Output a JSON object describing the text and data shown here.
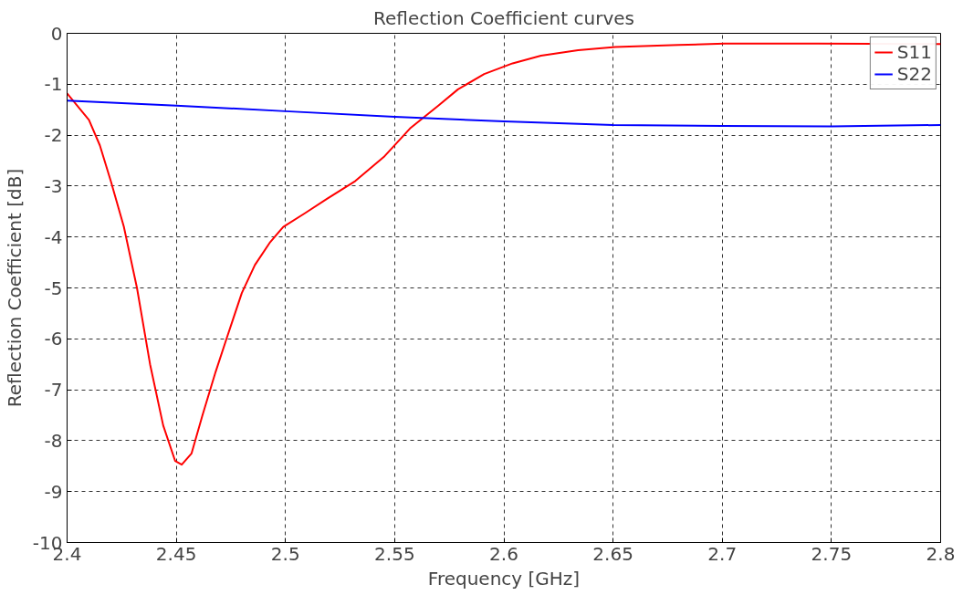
{
  "chart_data": {
    "type": "line",
    "title": "Reflection Coefficient curves",
    "xlabel": "Frequency [GHz]",
    "ylabel": "Reflection Coefficient [dB]",
    "xlim": [
      2.4,
      2.8
    ],
    "ylim": [
      -10,
      0
    ],
    "xticks": [
      2.4,
      2.45,
      2.5,
      2.55,
      2.6,
      2.65,
      2.7,
      2.75,
      2.8
    ],
    "yticks": [
      -10,
      -9,
      -8,
      -7,
      -6,
      -5,
      -4,
      -3,
      -2,
      -1,
      0
    ],
    "grid": true,
    "legend": "top right",
    "marker": "none",
    "line_style": "solid",
    "series": [
      {
        "name": "S11",
        "color": "#ff0000",
        "x": [
          2.4,
          2.41,
          2.415,
          2.42,
          2.426,
          2.432,
          2.438,
          2.444,
          2.4495,
          2.4525,
          2.457,
          2.462,
          2.468,
          2.473,
          2.48,
          2.486,
          2.493,
          2.499,
          2.509,
          2.519,
          2.532,
          2.545,
          2.557,
          2.57,
          2.579,
          2.591,
          2.604,
          2.617,
          2.634,
          2.651,
          2.68,
          2.701,
          2.744,
          2.8
        ],
        "values": [
          -1.18,
          -1.7,
          -2.2,
          -2.9,
          -3.8,
          -5.0,
          -6.5,
          -7.7,
          -8.4,
          -8.47,
          -8.25,
          -7.5,
          -6.65,
          -6.0,
          -5.1,
          -4.55,
          -4.1,
          -3.8,
          -3.53,
          -3.25,
          -2.9,
          -2.43,
          -1.87,
          -1.42,
          -1.1,
          -0.8,
          -0.59,
          -0.44,
          -0.33,
          -0.27,
          -0.23,
          -0.2,
          -0.2,
          -0.21
        ]
      },
      {
        "name": "S22",
        "color": "#0000ff",
        "x": [
          2.4,
          2.45,
          2.5,
          2.55,
          2.6,
          2.65,
          2.7,
          2.75,
          2.8
        ],
        "values": [
          -1.32,
          -1.42,
          -1.53,
          -1.64,
          -1.73,
          -1.8,
          -1.82,
          -1.83,
          -1.8
        ]
      }
    ]
  }
}
